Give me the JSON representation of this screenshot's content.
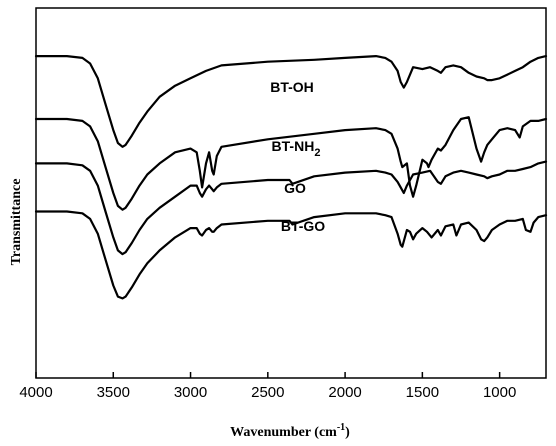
{
  "chart_data": {
    "type": "line",
    "xlabel": "Wavenumber (cm",
    "xlabel_sup": "-1",
    "xlabel_close": ")",
    "ylabel": "Transmittance",
    "xlim": [
      4000,
      700
    ],
    "x_reversed": true,
    "xticks": [
      4000,
      3500,
      3000,
      2500,
      2000,
      1500,
      1000
    ],
    "ylim": [
      0,
      100
    ],
    "grid": false,
    "series": [
      {
        "name": "BT-OH",
        "label_parts": [
          "BT-OH",
          "",
          ""
        ],
        "x": [
          4000,
          3800,
          3700,
          3650,
          3600,
          3550,
          3500,
          3470,
          3440,
          3420,
          3380,
          3330,
          3280,
          3200,
          3100,
          3000,
          2900,
          2800,
          2500,
          2200,
          2000,
          1800,
          1740,
          1700,
          1660,
          1640,
          1620,
          1600,
          1560,
          1500,
          1450,
          1400,
          1380,
          1350,
          1300,
          1250,
          1200,
          1150,
          1100,
          1080,
          1050,
          1000,
          950,
          900,
          850,
          800,
          750,
          700
        ],
        "y": [
          87,
          87,
          86.5,
          85,
          81,
          74,
          67,
          63.5,
          62.5,
          63,
          65.5,
          69,
          72,
          76,
          79,
          81,
          83,
          84.5,
          85.5,
          86,
          86.5,
          87,
          86.5,
          85.5,
          83,
          80,
          78.5,
          80,
          84,
          83.5,
          84,
          83,
          82.5,
          84,
          84.5,
          84,
          82.5,
          81.5,
          81,
          80.5,
          80.5,
          81,
          82,
          83,
          84,
          85.5,
          86.5,
          87
        ]
      },
      {
        "name": "BT-NH2",
        "label_parts": [
          "BT-NH",
          "2",
          ""
        ],
        "x": [
          4000,
          3800,
          3700,
          3650,
          3600,
          3550,
          3500,
          3470,
          3440,
          3420,
          3380,
          3330,
          3280,
          3200,
          3100,
          3000,
          2960,
          2940,
          2925,
          2900,
          2880,
          2860,
          2850,
          2830,
          2800,
          2500,
          2200,
          2000,
          1800,
          1740,
          1700,
          1660,
          1640,
          1630,
          1600,
          1580,
          1560,
          1540,
          1500,
          1470,
          1460,
          1440,
          1400,
          1380,
          1350,
          1300,
          1250,
          1200,
          1150,
          1120,
          1100,
          1080,
          1050,
          1000,
          950,
          900,
          870,
          850,
          800,
          750,
          700
        ],
        "y": [
          70,
          70,
          69.5,
          68,
          64,
          57,
          50,
          46.5,
          45.5,
          46,
          48.5,
          52,
          55,
          58,
          61,
          62,
          61,
          56,
          51.5,
          58,
          61,
          56,
          55,
          60,
          62.5,
          64.5,
          66,
          67,
          67.5,
          67,
          66,
          62,
          58.5,
          57,
          58,
          52,
          49,
          52,
          59,
          58,
          57,
          59,
          62,
          61.5,
          63,
          67,
          70,
          70.5,
          62,
          58.5,
          61,
          63,
          64.5,
          67,
          67.5,
          67,
          65,
          68,
          69.5,
          69.5,
          70
        ]
      },
      {
        "name": "GO",
        "label_parts": [
          "GO",
          "",
          ""
        ],
        "x": [
          4000,
          3800,
          3700,
          3650,
          3600,
          3550,
          3500,
          3470,
          3440,
          3420,
          3380,
          3330,
          3280,
          3200,
          3100,
          3000,
          2960,
          2940,
          2925,
          2900,
          2880,
          2860,
          2850,
          2830,
          2800,
          2500,
          2360,
          2340,
          2200,
          2000,
          1800,
          1740,
          1700,
          1660,
          1640,
          1620,
          1600,
          1560,
          1500,
          1450,
          1400,
          1380,
          1350,
          1300,
          1250,
          1200,
          1150,
          1100,
          1080,
          1050,
          1000,
          950,
          900,
          850,
          800,
          750,
          700
        ],
        "y": [
          58,
          58,
          57.5,
          56,
          52,
          45,
          38,
          34.5,
          33.5,
          34,
          36.5,
          40,
          43,
          46,
          49,
          52,
          52,
          50,
          49,
          51,
          52,
          51,
          50.5,
          51.5,
          52.5,
          53.5,
          53.5,
          52.5,
          54.5,
          55.5,
          56,
          55.5,
          55,
          53,
          51.5,
          50,
          52,
          55,
          55.5,
          56,
          53,
          52.5,
          54.5,
          55.5,
          56,
          55.5,
          55,
          54.5,
          54,
          54.5,
          55,
          56,
          56,
          56.5,
          57,
          58,
          58.5
        ]
      },
      {
        "name": "BT-GO",
        "label_parts": [
          "BT-GO",
          "",
          ""
        ],
        "x": [
          4000,
          3800,
          3700,
          3650,
          3600,
          3550,
          3500,
          3470,
          3440,
          3420,
          3380,
          3330,
          3280,
          3200,
          3100,
          3000,
          2960,
          2940,
          2925,
          2900,
          2880,
          2860,
          2850,
          2830,
          2800,
          2500,
          2360,
          2340,
          2200,
          2000,
          1800,
          1740,
          1700,
          1660,
          1640,
          1630,
          1600,
          1580,
          1560,
          1540,
          1500,
          1470,
          1440,
          1400,
          1380,
          1350,
          1300,
          1280,
          1250,
          1200,
          1150,
          1120,
          1100,
          1080,
          1050,
          1000,
          950,
          900,
          850,
          830,
          800,
          780,
          750,
          700
        ],
        "y": [
          45,
          45,
          44.5,
          43,
          39,
          32,
          25,
          22,
          21.5,
          22,
          24.5,
          28,
          31,
          34.5,
          38,
          40.5,
          40.5,
          39,
          38.5,
          40,
          40.5,
          39.5,
          39.5,
          40.5,
          41.5,
          42.5,
          42.5,
          41.5,
          43.5,
          44.5,
          44.5,
          44,
          43.5,
          39,
          36,
          35.5,
          40,
          39.5,
          37.5,
          39,
          40.5,
          39.5,
          38,
          40,
          38.5,
          41,
          41.5,
          38.5,
          41.5,
          42,
          40,
          37.5,
          37,
          38,
          40,
          41.5,
          42.5,
          42.5,
          43,
          40,
          39.5,
          42,
          43.5,
          44
        ]
      }
    ]
  }
}
